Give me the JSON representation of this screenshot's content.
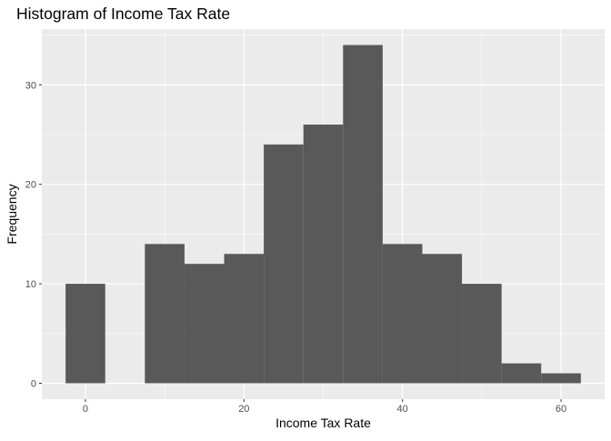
{
  "chart_data": {
    "type": "bar",
    "title": "Histogram of Income Tax Rate",
    "xlabel": "Income Tax Rate",
    "ylabel": "Frequency",
    "bin_width": 5,
    "bins": [
      {
        "start": -2.5,
        "end": 2.5,
        "count": 10
      },
      {
        "start": 2.5,
        "end": 7.5,
        "count": 0
      },
      {
        "start": 7.5,
        "end": 12.5,
        "count": 14
      },
      {
        "start": 12.5,
        "end": 17.5,
        "count": 12
      },
      {
        "start": 17.5,
        "end": 22.5,
        "count": 13
      },
      {
        "start": 22.5,
        "end": 27.5,
        "count": 24
      },
      {
        "start": 27.5,
        "end": 32.5,
        "count": 26
      },
      {
        "start": 32.5,
        "end": 37.5,
        "count": 34
      },
      {
        "start": 37.5,
        "end": 42.5,
        "count": 14
      },
      {
        "start": 42.5,
        "end": 47.5,
        "count": 13
      },
      {
        "start": 47.5,
        "end": 52.5,
        "count": 10
      },
      {
        "start": 52.5,
        "end": 57.5,
        "count": 2
      },
      {
        "start": 57.5,
        "end": 62.5,
        "count": 1
      }
    ],
    "xlim": [
      -5.5,
      65.5
    ],
    "ylim": [
      -1.6,
      35.6
    ],
    "x_ticks": [
      0,
      20,
      40,
      60
    ],
    "x_minor_ticks": [
      10,
      30,
      50
    ],
    "y_ticks": [
      0,
      10,
      20,
      30
    ],
    "y_minor_ticks": [
      5,
      15,
      25,
      35
    ],
    "grid": true,
    "colors": {
      "bar": "#595959",
      "panel": "#ebebeb",
      "grid": "#ffffff",
      "tick_label": "#4d4d4d"
    }
  }
}
